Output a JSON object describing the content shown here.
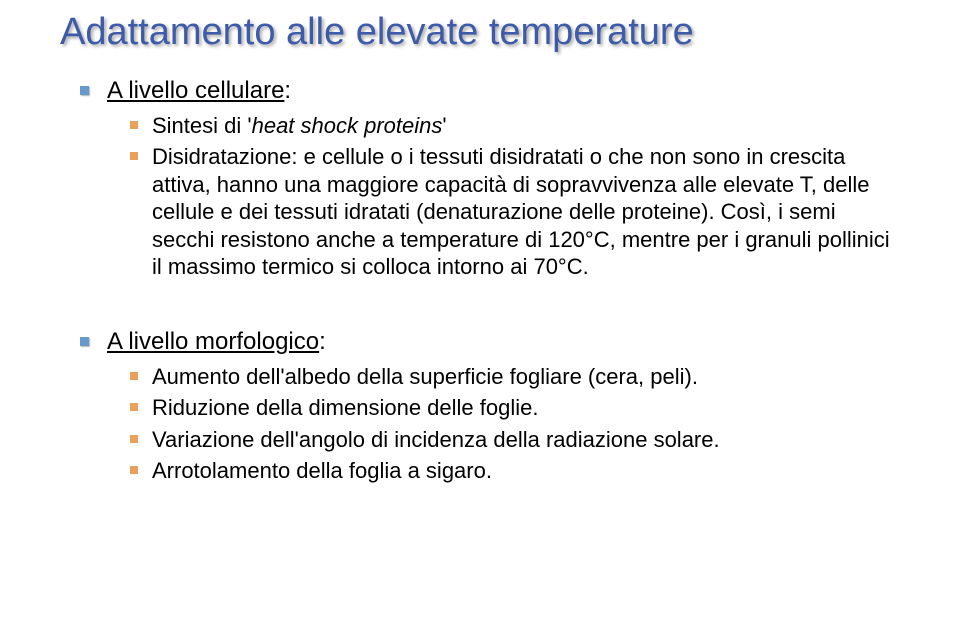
{
  "title": "Adattamento alle elevate temperature",
  "section1": {
    "heading_pre": "A livello cellulare",
    "heading_post": ":",
    "item1_pre": "Sintesi di '",
    "item1_it": "heat shock proteins",
    "item1_post": "'",
    "item2": "Disidratazione: e cellule o i tessuti disidratati o che non sono in crescita attiva, hanno una maggiore capacità di sopravvivenza alle elevate T, delle cellule e dei tessuti idratati (denaturazione delle proteine). Così, i semi secchi resistono anche a temperature di 120°C, mentre per i granuli pollinici il massimo termico si colloca intorno ai 70°C."
  },
  "section2": {
    "heading_pre": "A livello morfologico",
    "heading_post": ":",
    "item1": "Aumento dell'albedo della superficie fogliare (cera, peli).",
    "item2": "Riduzione della dimensione delle foglie.",
    "item3": "Variazione dell'angolo di incidenza della radiazione solare.",
    "item4": "Arrotolamento della foglia a sigaro."
  }
}
